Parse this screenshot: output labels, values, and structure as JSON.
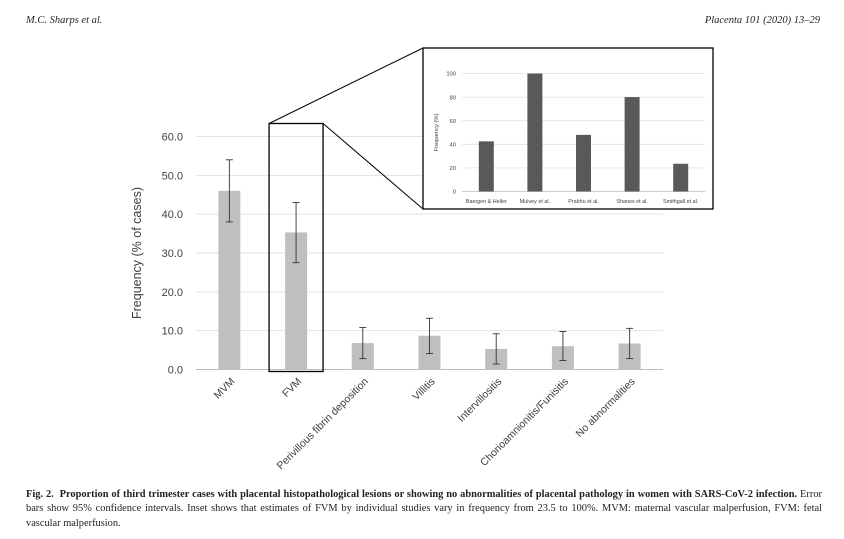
{
  "header": {
    "left": "M.C. Sharps et al.",
    "right": "Placenta 101 (2020) 13–29"
  },
  "chart_data": [
    {
      "type": "bar",
      "title": "",
      "xlabel": "",
      "ylabel": "Frequency (% of cases)",
      "ylim": [
        0,
        60
      ],
      "yticks": [
        "0.0",
        "10.0",
        "20.0",
        "30.0",
        "40.0",
        "50.0",
        "60.0"
      ],
      "categories": [
        "MVM",
        "FVM",
        "Perivillous fibrin deposition",
        "Villitis",
        "Intervillositis",
        "Chorioamnionitis/Funisitis",
        "No abnormalities"
      ],
      "values": [
        46.0,
        35.3,
        6.8,
        8.7,
        5.3,
        6.0,
        6.7
      ],
      "ci_low": [
        38.0,
        27.5,
        2.8,
        4.1,
        1.4,
        2.3,
        2.8
      ],
      "ci_high": [
        54.0,
        43.0,
        10.8,
        13.2,
        9.2,
        9.8,
        10.6
      ],
      "bar_color": "#bfbfbf",
      "highlight": "FVM"
    },
    {
      "type": "bar",
      "title": "",
      "xlabel": "",
      "ylabel": "Frequency (%)",
      "ylim": [
        0,
        100
      ],
      "yticks": [
        "0",
        "20",
        "40",
        "60",
        "80",
        "100"
      ],
      "categories": [
        "Baergen & Heller",
        "Mulvey et al.",
        "Prabhu et al.",
        "Shanes et al.",
        "Smithgall et al."
      ],
      "values": [
        42.5,
        100,
        48,
        80,
        23.5
      ],
      "bar_color": "#595959"
    }
  ],
  "caption": {
    "label": "Fig. 2.",
    "bold_text": "Proportion of third trimester cases with placental histopathological lesions or showing no abnormalities of placental pathology in women with SARS-CoV-2 infection.",
    "text": "Error bars show 95% confidence intervals. Inset shows that estimates of FVM by individual studies vary in frequency from 23.5 to 100%. MVM: maternal vascular malperfusion, FVM: fetal vascular malperfusion."
  }
}
